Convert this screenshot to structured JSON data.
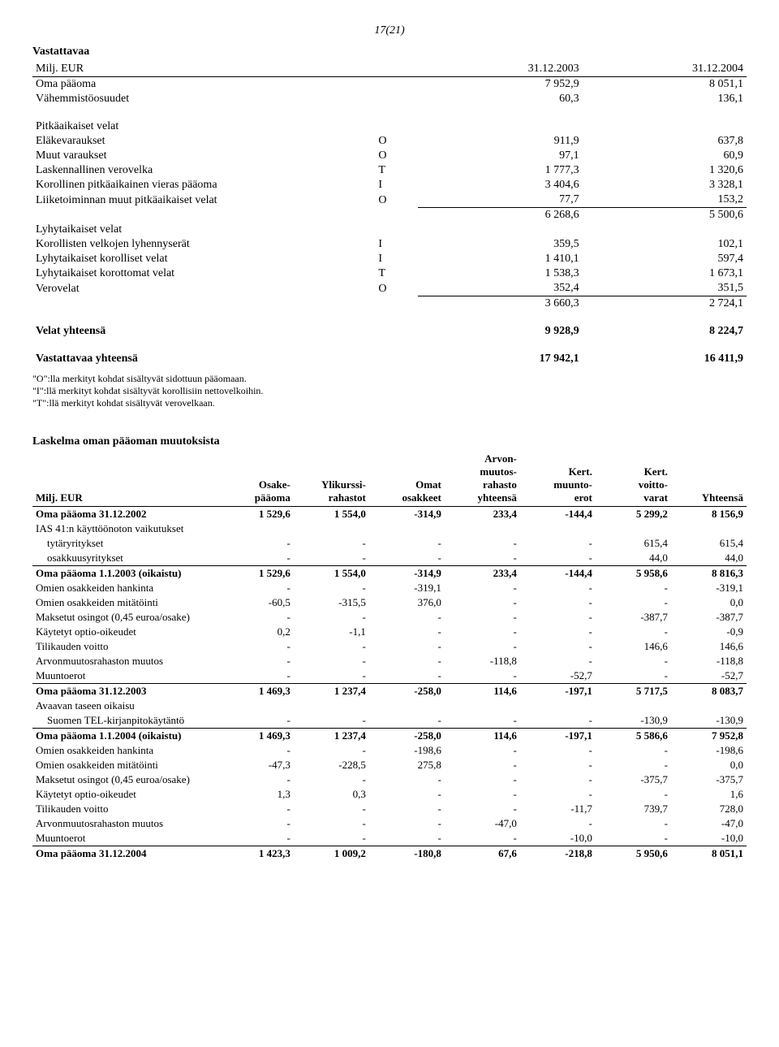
{
  "pageNumber": "17(21)",
  "balance": {
    "title": "Vastattavaa",
    "currencyLabel": "Milj. EUR",
    "col1": "31.12.2003",
    "col2": "31.12.2004",
    "rows": [
      {
        "label": "Oma pääoma",
        "tag": "",
        "v1": "7 952,9",
        "v2": "8 051,1",
        "bold": false
      },
      {
        "label": "Vähemmistöosuudet",
        "tag": "",
        "v1": "60,3",
        "v2": "136,1",
        "bold": false
      },
      {
        "spacer": true
      },
      {
        "label": "Pitkäaikaiset velat",
        "tag": "",
        "v1": "",
        "v2": "",
        "bold": false
      },
      {
        "label": "Eläkevaraukset",
        "tag": "O",
        "v1": "911,9",
        "v2": "637,8",
        "bold": false
      },
      {
        "label": "Muut varaukset",
        "tag": "O",
        "v1": "97,1",
        "v2": "60,9",
        "bold": false
      },
      {
        "label": "Laskennallinen verovelka",
        "tag": "T",
        "v1": "1 777,3",
        "v2": "1 320,6",
        "bold": false
      },
      {
        "label": "Korollinen pitkäaikainen vieras pääoma",
        "tag": "I",
        "v1": "3 404,6",
        "v2": "3 328,1",
        "bold": false
      },
      {
        "label": "Liiketoiminnan muut pitkäaikaiset velat",
        "tag": "O",
        "v1": "77,7",
        "v2": "153,2",
        "bold": false
      },
      {
        "label": "",
        "tag": "",
        "v1": "6 268,6",
        "v2": "5 500,6",
        "bold": false,
        "sumTop": true
      },
      {
        "label": "Lyhytaikaiset velat",
        "tag": "",
        "v1": "",
        "v2": "",
        "bold": false
      },
      {
        "label": "Korollisten velkojen lyhennyserät",
        "tag": "I",
        "v1": "359,5",
        "v2": "102,1",
        "bold": false
      },
      {
        "label": "Lyhytaikaiset korolliset velat",
        "tag": "I",
        "v1": "1 410,1",
        "v2": "597,4",
        "bold": false
      },
      {
        "label": "Lyhytaikaiset korottomat velat",
        "tag": "T",
        "v1": "1 538,3",
        "v2": "1 673,1",
        "bold": false
      },
      {
        "label": "Verovelat",
        "tag": "O",
        "v1": "352,4",
        "v2": "351,5",
        "bold": false
      },
      {
        "label": "",
        "tag": "",
        "v1": "3 660,3",
        "v2": "2 724,1",
        "bold": false,
        "sumTop": true
      },
      {
        "spacer": true
      },
      {
        "label": "Velat yhteensä",
        "tag": "",
        "v1": "9 928,9",
        "v2": "8 224,7",
        "bold": true
      },
      {
        "spacer": true
      },
      {
        "label": "Vastattavaa yhteensä",
        "tag": "",
        "v1": "17 942,1",
        "v2": "16 411,9",
        "bold": true
      }
    ],
    "footnotes": [
      "\"O\":lla merkityt kohdat sisältyvät sidottuun pääomaan.",
      "\"I\":llä merkityt kohdat sisältyvät korollisiin nettovelkoihin.",
      "\"T\":llä merkityt kohdat sisältyvät verovelkaan."
    ]
  },
  "equity": {
    "title": "Laskelma oman pääoman muutoksista",
    "currencyLabel": "Milj. EUR",
    "headers": [
      "",
      "Osake-\npääoma",
      "Ylikurssi-\nrahastot",
      "Omat\nosakkeet",
      "Arvon-\nmuutos-\nrahasto\nyhteensä",
      "Kert.\nmuunto-\nerot",
      "Kert.\nvoitto-\nvarat",
      "Yhteensä"
    ],
    "rows": [
      {
        "label": "Oma pääoma 31.12.2002",
        "vals": [
          "1 529,6",
          "1 554,0",
          "-314,9",
          "233,4",
          "-144,4",
          "5 299,2",
          "8 156,9"
        ],
        "bold": true
      },
      {
        "label": "IAS 41:n käyttöönoton vaikutukset",
        "vals": [
          "",
          "",
          "",
          "",
          "",
          "",
          ""
        ],
        "bold": false
      },
      {
        "label": "tytäryritykset",
        "vals": [
          "-",
          "-",
          "-",
          "-",
          "-",
          "615,4",
          "615,4"
        ],
        "bold": false,
        "indent": true
      },
      {
        "label": "osakkuusyritykset",
        "vals": [
          "-",
          "-",
          "-",
          "-",
          "-",
          "44,0",
          "44,0"
        ],
        "bold": false,
        "indent": true
      },
      {
        "label": "Oma pääoma 1.1.2003 (oikaistu)",
        "vals": [
          "1 529,6",
          "1 554,0",
          "-314,9",
          "233,4",
          "-144,4",
          "5 958,6",
          "8 816,3"
        ],
        "bold": true,
        "border": true
      },
      {
        "label": "Omien osakkeiden hankinta",
        "vals": [
          "-",
          "-",
          "-319,1",
          "-",
          "-",
          "-",
          "-319,1"
        ],
        "bold": false
      },
      {
        "label": "Omien osakkeiden mitätöinti",
        "vals": [
          "-60,5",
          "-315,5",
          "376,0",
          "-",
          "-",
          "-",
          "0,0"
        ],
        "bold": false
      },
      {
        "label": "Maksetut osingot (0,45 euroa/osake)",
        "vals": [
          "-",
          "-",
          "-",
          "-",
          "-",
          "-387,7",
          "-387,7"
        ],
        "bold": false
      },
      {
        "label": "Käytetyt optio-oikeudet",
        "vals": [
          "0,2",
          "-1,1",
          "-",
          "-",
          "-",
          "-",
          "-0,9"
        ],
        "bold": false
      },
      {
        "label": "Tilikauden voitto",
        "vals": [
          "-",
          "-",
          "-",
          "-",
          "-",
          "146,6",
          "146,6"
        ],
        "bold": false
      },
      {
        "label": "Arvonmuutosrahaston muutos",
        "vals": [
          "-",
          "-",
          "-",
          "-118,8",
          "-",
          "-",
          "-118,8"
        ],
        "bold": false
      },
      {
        "label": "Muuntoerot",
        "vals": [
          "-",
          "-",
          "-",
          "-",
          "-52,7",
          "-",
          "-52,7"
        ],
        "bold": false
      },
      {
        "label": "Oma pääoma 31.12.2003",
        "vals": [
          "1 469,3",
          "1 237,4",
          "-258,0",
          "114,6",
          "-197,1",
          "5 717,5",
          "8 083,7"
        ],
        "bold": true,
        "border": true
      },
      {
        "label": "Avaavan taseen oikaisu",
        "vals": [
          "",
          "",
          "",
          "",
          "",
          "",
          ""
        ],
        "bold": false
      },
      {
        "label": "Suomen TEL-kirjanpitokäytäntö",
        "vals": [
          "-",
          "-",
          "-",
          "-",
          "-",
          "-130,9",
          "-130,9"
        ],
        "bold": false,
        "indent": true
      },
      {
        "label": "Oma pääoma 1.1.2004 (oikaistu)",
        "vals": [
          "1 469,3",
          "1 237,4",
          "-258,0",
          "114,6",
          "-197,1",
          "5 586,6",
          "7 952,8"
        ],
        "bold": true,
        "border": true
      },
      {
        "label": "Omien osakkeiden hankinta",
        "vals": [
          "-",
          "-",
          "-198,6",
          "-",
          "-",
          "-",
          "-198,6"
        ],
        "bold": false
      },
      {
        "label": "Omien osakkeiden mitätöinti",
        "vals": [
          "-47,3",
          "-228,5",
          "275,8",
          "-",
          "-",
          "-",
          "0,0"
        ],
        "bold": false
      },
      {
        "label": "Maksetut osingot (0,45 euroa/osake)",
        "vals": [
          "-",
          "-",
          "-",
          "-",
          "-",
          "-375,7",
          "-375,7"
        ],
        "bold": false
      },
      {
        "label": "Käytetyt optio-oikeudet",
        "vals": [
          "1,3",
          "0,3",
          "-",
          "-",
          "-",
          "-",
          "1,6"
        ],
        "bold": false
      },
      {
        "label": "Tilikauden voitto",
        "vals": [
          "-",
          "-",
          "-",
          "-",
          "-11,7",
          "739,7",
          "728,0"
        ],
        "bold": false
      },
      {
        "label": "Arvonmuutosrahaston muutos",
        "vals": [
          "-",
          "-",
          "-",
          "-47,0",
          "-",
          "-",
          "-47,0"
        ],
        "bold": false
      },
      {
        "label": "Muuntoerot",
        "vals": [
          "-",
          "-",
          "-",
          "-",
          "-10,0",
          "-",
          "-10,0"
        ],
        "bold": false
      },
      {
        "label": "Oma pääoma 31.12.2004",
        "vals": [
          "1 423,3",
          "1 009,2",
          "-180,8",
          "67,6",
          "-218,8",
          "5 950,6",
          "8 051,1"
        ],
        "bold": true,
        "border": true
      }
    ]
  }
}
